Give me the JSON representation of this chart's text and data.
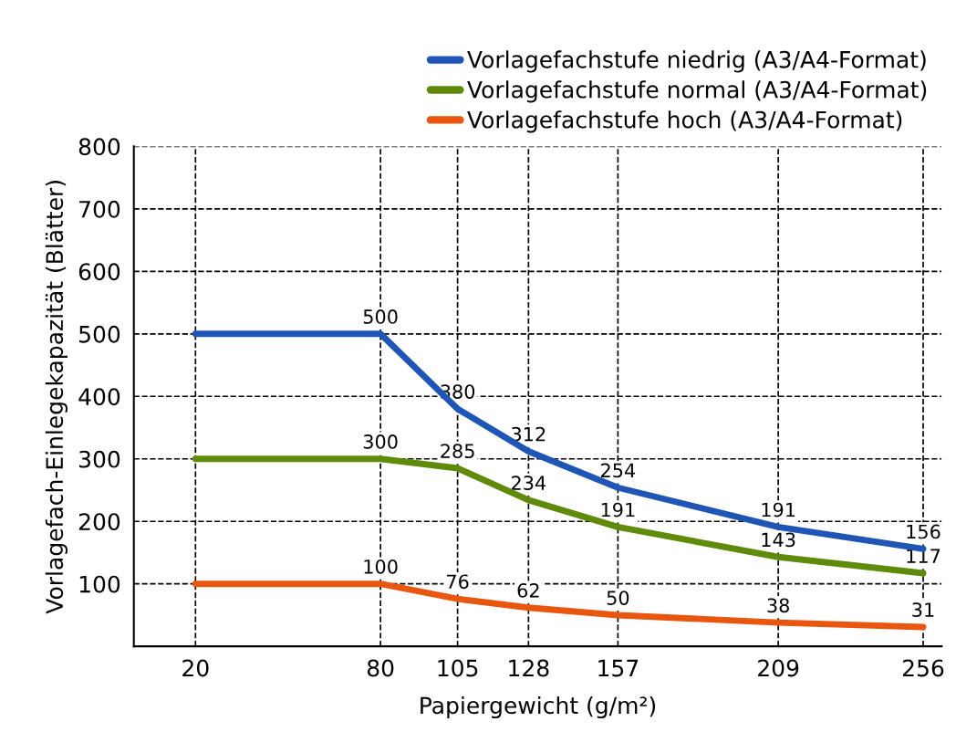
{
  "chart_data": {
    "type": "line",
    "xlabel": "Papiergewicht (g/m²)",
    "ylabel": "Vorlagefach-Einlegekapazität (Blätter)",
    "x": [
      20,
      80,
      105,
      128,
      157,
      209,
      256
    ],
    "series": [
      {
        "name": "Vorlagefachstufe niedrig (A3/A4-Format)",
        "color": "#1f55b5",
        "values": [
          500,
          500,
          380,
          312,
          254,
          191,
          156
        ],
        "value_labels": [
          null,
          "500",
          "380",
          "312",
          "254",
          "191",
          "156"
        ]
      },
      {
        "name": "Vorlagefachstufe normal (A3/A4-Format)",
        "color": "#5f8a0a",
        "values": [
          300,
          300,
          285,
          234,
          191,
          143,
          117
        ],
        "value_labels": [
          null,
          "300",
          "285",
          "234",
          "191",
          "143",
          "117"
        ]
      },
      {
        "name": "Vorlagefachstufe hoch (A3/A4-Format)",
        "color": "#e8560f",
        "values": [
          100,
          100,
          76,
          62,
          50,
          38,
          31
        ],
        "value_labels": [
          null,
          "100",
          "76",
          "62",
          "50",
          "38",
          "31"
        ]
      }
    ],
    "xlim": [
      0,
      262
    ],
    "xticks": [
      20,
      80,
      105,
      128,
      157,
      209,
      256
    ],
    "ylim": [
      0,
      800
    ],
    "yticks": [
      100,
      200,
      300,
      400,
      500,
      600,
      700,
      800
    ],
    "grid": true,
    "legend": "top right",
    "marker": "none",
    "line_style": "solid"
  }
}
